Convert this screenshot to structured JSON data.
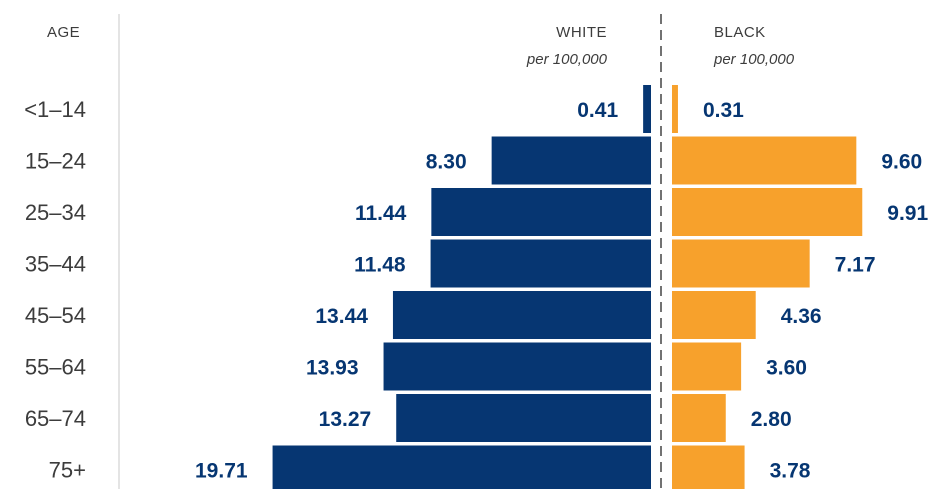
{
  "chart_data": {
    "type": "bar",
    "orientation": "horizontal-mirrored",
    "category_header": "AGE",
    "categories": [
      "<1–14",
      "15–24",
      "25–34",
      "35–44",
      "45–54",
      "55–64",
      "65–74",
      "75+"
    ],
    "series": [
      {
        "name": "WHITE",
        "subtitle": "per 100,000",
        "color": "#063672",
        "label_color": "#063672",
        "values": [
          0.41,
          8.3,
          11.44,
          11.48,
          13.44,
          13.93,
          13.27,
          19.71
        ],
        "value_labels": [
          "0.41",
          "8.30",
          "11.44",
          "11.48",
          "13.44",
          "13.93",
          "13.27",
          "19.71"
        ]
      },
      {
        "name": "BLACK",
        "subtitle": "per 100,000",
        "color": "#f7a12c",
        "label_color": "#063672",
        "values": [
          0.31,
          9.6,
          9.91,
          7.17,
          4.36,
          3.6,
          2.8,
          3.78
        ],
        "value_labels": [
          "0.31",
          "9.60",
          "9.91",
          "7.17",
          "4.36",
          "3.60",
          "2.80",
          "3.78"
        ]
      }
    ],
    "grid": false,
    "center_divider": "dashed"
  }
}
